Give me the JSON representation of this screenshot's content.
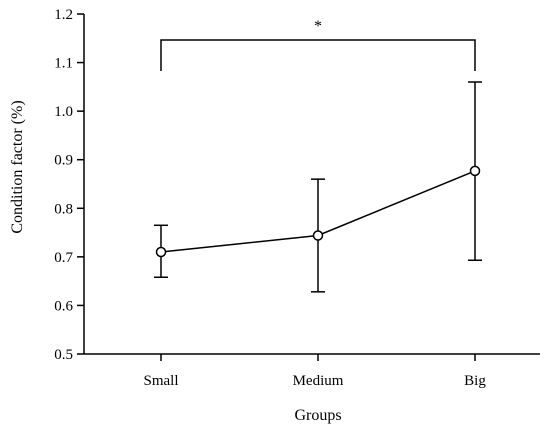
{
  "chart_data": {
    "type": "line",
    "title": "",
    "xlabel": "Groups",
    "ylabel": "Condition factor (%)",
    "categories": [
      "Small",
      "Medium",
      "Big"
    ],
    "series": [
      {
        "values": [
          0.71,
          0.744,
          0.877
        ],
        "error_low": [
          0.658,
          0.628,
          0.693
        ],
        "error_high": [
          0.765,
          0.86,
          1.06
        ]
      }
    ],
    "ylim": [
      0.5,
      1.2
    ],
    "yticks": [
      "0.5",
      "0.6",
      "0.7",
      "0.8",
      "0.9",
      "1.0",
      "1.1",
      "1.2"
    ],
    "grid": false,
    "annotations": [
      {
        "type": "significance-bracket",
        "from": "Small",
        "to": "Big",
        "label": "*"
      }
    ]
  }
}
